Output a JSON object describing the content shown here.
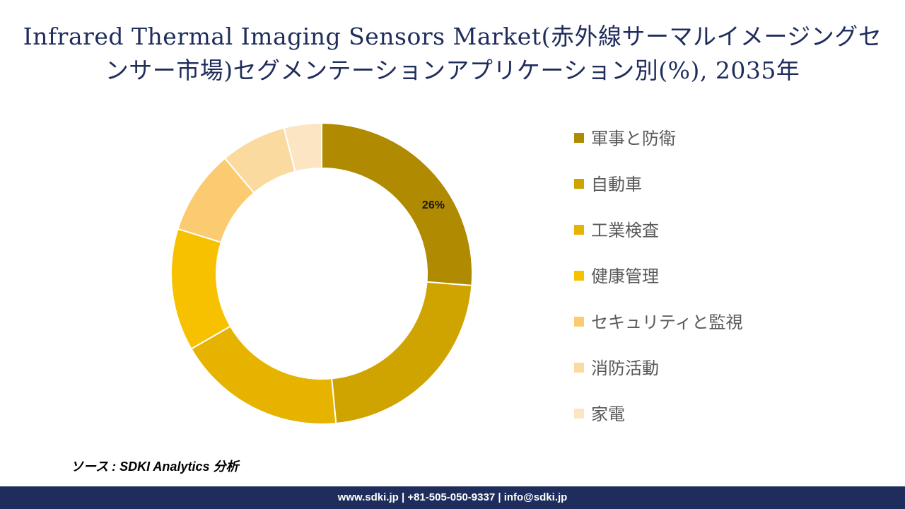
{
  "title": "Infrared Thermal Imaging Sensors Market(赤外線サーマルイメージングセンサー市場)セグメンテーションアプリケーション別(%), 2035年",
  "source": "ソース : SDKI Analytics 分析",
  "footer": "www.sdki.jp | +81-505-050-9337 | info@sdki.jp",
  "chart_data": {
    "type": "pie",
    "donut": true,
    "title": "Infrared Thermal Imaging Sensors Market(赤外線サーマルイメージングセンサー市場)セグメンテーションアプリケーション別(%), 2035年",
    "legend_position": "right",
    "categories": [
      "軍事と防衛",
      "自動車",
      "工業検査",
      "健康管理",
      "セキュリティと監視",
      "消防活動",
      "家電"
    ],
    "values": [
      26,
      22,
      18,
      13,
      9,
      7,
      4
    ],
    "unit": "%",
    "data_labels": [
      "26%",
      "",
      "",
      "",
      "",
      "",
      ""
    ],
    "colors": [
      "#B08A00",
      "#CFA300",
      "#E5B300",
      "#F7C100",
      "#FACB70",
      "#FBDAA0",
      "#FCE5C3"
    ]
  }
}
